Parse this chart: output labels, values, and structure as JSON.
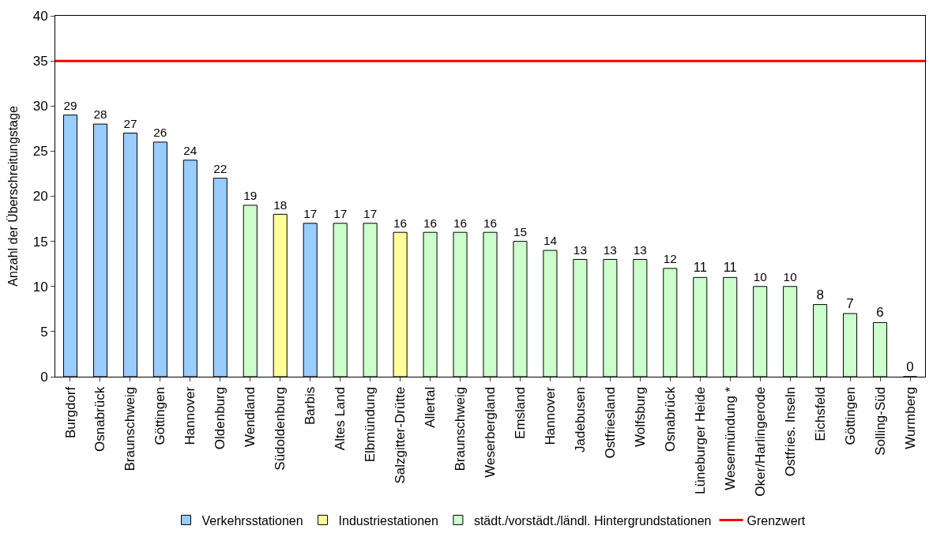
{
  "chart_data": {
    "type": "bar",
    "ylabel": "Anzahl der Überschreitungstage",
    "categories": [
      "Burgdorf",
      "Osnabrück",
      "Braunschweig",
      "Göttingen",
      "Hannover",
      "Oldenburg",
      "Wendland",
      "Südoldenburg",
      "Barbis",
      "Altes Land",
      "Elbmündung",
      "Salzgitter-Drütte",
      "Allertal",
      "Braunschweig",
      "Weserbergland",
      "Emsland",
      "Hannover",
      "Jadebusen",
      "Ostfriesland",
      "Wolfsburg",
      "Osnabrück",
      "Lüneburger Heide",
      "Wesermündung *",
      "Oker/Harlingerode",
      "Ostfries. Inseln",
      "Eichsfeld",
      "Göttingen",
      "Solling-Süd",
      "Wurmberg"
    ],
    "series": [
      {
        "name": "Verkehrsstationen",
        "color": "#99ccff",
        "values": [
          29,
          28,
          27,
          26,
          24,
          22,
          null,
          null,
          17,
          null,
          null,
          null,
          null,
          null,
          null,
          null,
          null,
          null,
          null,
          null,
          null,
          null,
          null,
          null,
          null,
          null,
          null,
          null,
          null
        ]
      },
      {
        "name": "Industriestationen",
        "color": "#ffff99",
        "values": [
          null,
          null,
          null,
          null,
          null,
          null,
          null,
          18,
          null,
          null,
          null,
          16,
          null,
          null,
          null,
          null,
          null,
          null,
          null,
          null,
          null,
          null,
          null,
          null,
          null,
          null,
          null,
          null,
          null
        ]
      },
      {
        "name": "städt./vorstädt./ländl. Hintergrundstationen",
        "color": "#ccffcc",
        "values": [
          null,
          null,
          null,
          null,
          null,
          null,
          19,
          null,
          null,
          17,
          17,
          null,
          16,
          16,
          16,
          15,
          14,
          13,
          13,
          13,
          12,
          11,
          11,
          10,
          10,
          8,
          7,
          6,
          0
        ]
      }
    ],
    "ref_lines": [
      {
        "axis": "y",
        "value": 35,
        "label": "Grenzwert",
        "color": "#ff0000"
      }
    ],
    "ylim": [
      0,
      40
    ],
    "yticks": [
      0,
      5,
      10,
      15,
      20,
      25,
      30,
      35,
      40
    ],
    "data_labels": true,
    "legend": "bottom"
  }
}
